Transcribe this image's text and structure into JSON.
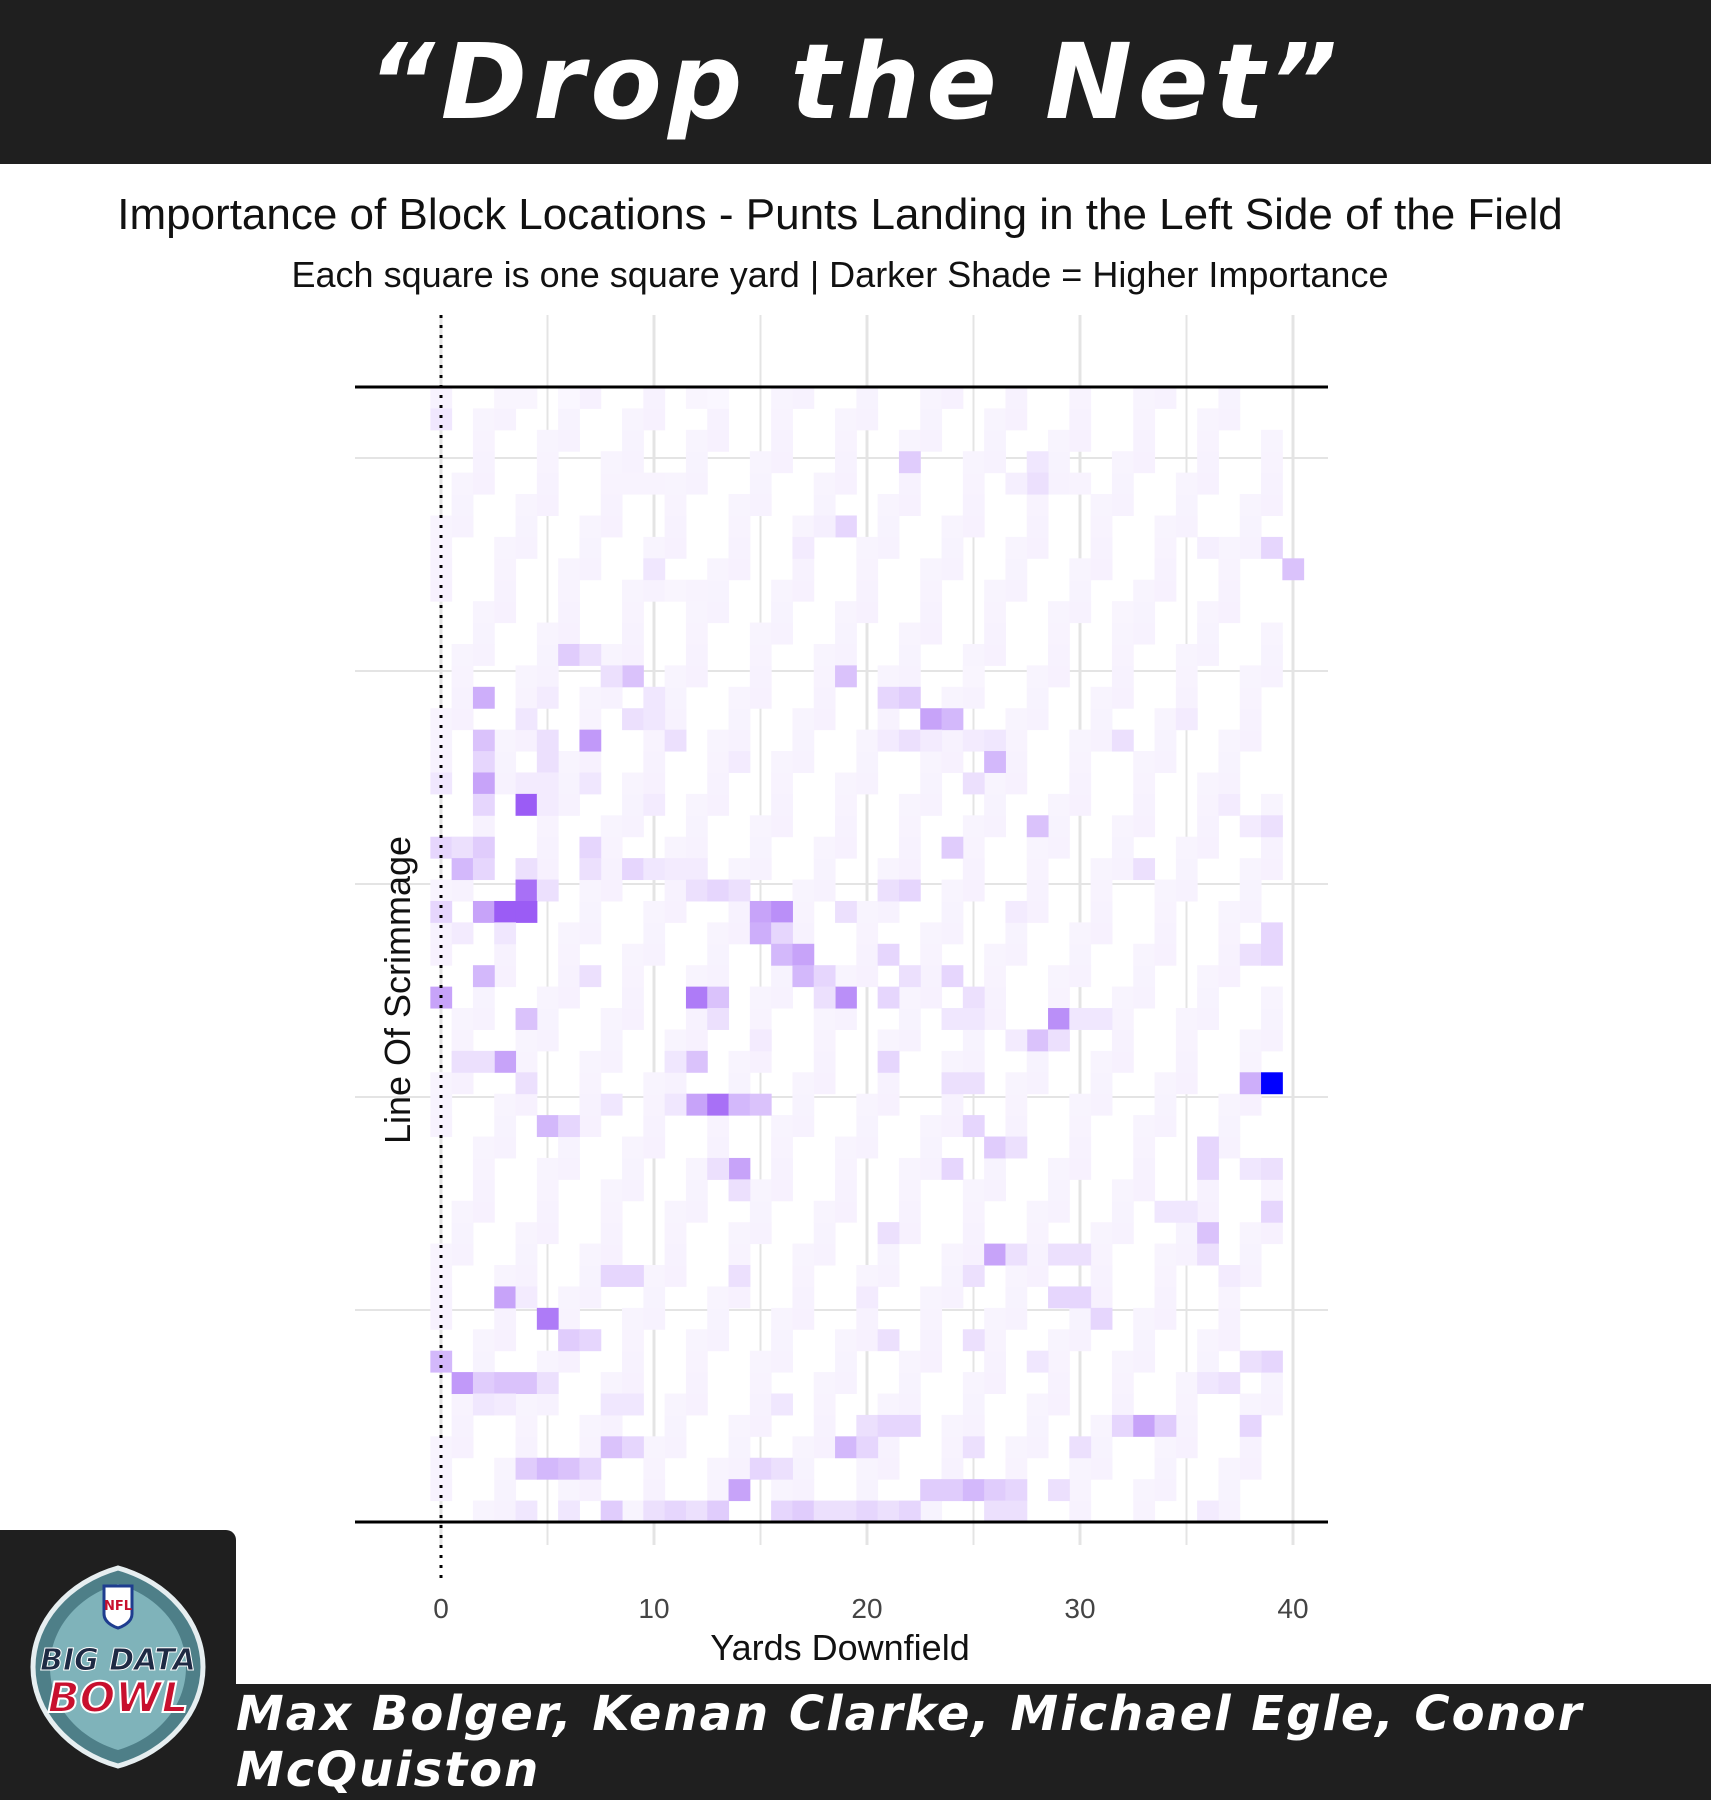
{
  "header": {
    "title": "“Drop the Net”"
  },
  "footer": {
    "authors": "Max Bolger, Kenan Clarke, Michael Egle, Conor McQuiston"
  },
  "logo": {
    "line1": "BIG DATA",
    "line2": "BOWL",
    "badge": "NFL"
  },
  "chart_data": {
    "type": "heatmap",
    "title": "Importance of Block Locations - Punts Landing in the Left Side of the Field",
    "subtitle": "Each square is one square yard | Darker Shade = Higher Importance",
    "xlabel": "Yards Downfield",
    "ylabel": "Line Of Scrimmage",
    "x_ticks": [
      0,
      10,
      20,
      30,
      40
    ],
    "xlim": [
      -4,
      42
    ],
    "x_range_cells": [
      0,
      40
    ],
    "y_range_cells": [
      0,
      53
    ],
    "line_of_scrimmage": 0,
    "grid": true,
    "color_low": "#ffffff",
    "color_mid": "#9b5cf5",
    "color_high": "#0000ff",
    "value_scale": [
      0,
      1
    ],
    "cells": [
      [
        0,
        52,
        0.12
      ],
      [
        3,
        53,
        0.05
      ],
      [
        4,
        53,
        0.05
      ],
      [
        6,
        53,
        0.04
      ],
      [
        12,
        53,
        0.05
      ],
      [
        13,
        53,
        0.04
      ],
      [
        22,
        50,
        0.25
      ],
      [
        28,
        50,
        0.12
      ],
      [
        28,
        49,
        0.15
      ],
      [
        27,
        49,
        0.08
      ],
      [
        9,
        49,
        0.06
      ],
      [
        10,
        49,
        0.06
      ],
      [
        30,
        49,
        0.06
      ],
      [
        19,
        47,
        0.2
      ],
      [
        18,
        47,
        0.08
      ],
      [
        17,
        46,
        0.1
      ],
      [
        39,
        46,
        0.2
      ],
      [
        40,
        45,
        0.3
      ],
      [
        36,
        46,
        0.08
      ],
      [
        10,
        45,
        0.12
      ],
      [
        6,
        44,
        0.06
      ],
      [
        11,
        44,
        0.05
      ],
      [
        12,
        44,
        0.06
      ],
      [
        32,
        43,
        0.05
      ],
      [
        6,
        41,
        0.25
      ],
      [
        7,
        41,
        0.15
      ],
      [
        9,
        40,
        0.3
      ],
      [
        8,
        40,
        0.15
      ],
      [
        19,
        40,
        0.3
      ],
      [
        25,
        40,
        0.05
      ],
      [
        2,
        39,
        0.4
      ],
      [
        5,
        39,
        0.1
      ],
      [
        10,
        39,
        0.12
      ],
      [
        21,
        39,
        0.2
      ],
      [
        22,
        39,
        0.25
      ],
      [
        4,
        38,
        0.12
      ],
      [
        9,
        38,
        0.15
      ],
      [
        10,
        38,
        0.12
      ],
      [
        23,
        38,
        0.45
      ],
      [
        24,
        38,
        0.35
      ],
      [
        35,
        38,
        0.1
      ],
      [
        2,
        37,
        0.3
      ],
      [
        7,
        37,
        0.5
      ],
      [
        5,
        37,
        0.15
      ],
      [
        11,
        37,
        0.15
      ],
      [
        21,
        37,
        0.1
      ],
      [
        22,
        37,
        0.15
      ],
      [
        23,
        37,
        0.1
      ],
      [
        25,
        37,
        0.1
      ],
      [
        26,
        37,
        0.12
      ],
      [
        32,
        37,
        0.15
      ],
      [
        2,
        36,
        0.2
      ],
      [
        5,
        36,
        0.15
      ],
      [
        14,
        36,
        0.1
      ],
      [
        26,
        36,
        0.35
      ],
      [
        0,
        35,
        0.12
      ],
      [
        2,
        35,
        0.45
      ],
      [
        4,
        35,
        0.1
      ],
      [
        5,
        35,
        0.1
      ],
      [
        7,
        35,
        0.12
      ],
      [
        25,
        35,
        0.15
      ],
      [
        4,
        34,
        0.8
      ],
      [
        2,
        34,
        0.2
      ],
      [
        5,
        34,
        0.1
      ],
      [
        10,
        34,
        0.1
      ],
      [
        28,
        33,
        0.3
      ],
      [
        37,
        34,
        0.1
      ],
      [
        38,
        33,
        0.1
      ],
      [
        39,
        33,
        0.15
      ],
      [
        0,
        32,
        0.2
      ],
      [
        1,
        32,
        0.15
      ],
      [
        2,
        32,
        0.25
      ],
      [
        7,
        32,
        0.2
      ],
      [
        9,
        31,
        0.2
      ],
      [
        24,
        32,
        0.25
      ],
      [
        33,
        31,
        0.15
      ],
      [
        1,
        31,
        0.35
      ],
      [
        2,
        31,
        0.2
      ],
      [
        4,
        31,
        0.15
      ],
      [
        7,
        31,
        0.15
      ],
      [
        10,
        31,
        0.12
      ],
      [
        11,
        31,
        0.1
      ],
      [
        12,
        31,
        0.1
      ],
      [
        4,
        30,
        0.7
      ],
      [
        5,
        30,
        0.15
      ],
      [
        12,
        30,
        0.15
      ],
      [
        13,
        30,
        0.2
      ],
      [
        14,
        30,
        0.15
      ],
      [
        21,
        30,
        0.15
      ],
      [
        22,
        30,
        0.2
      ],
      [
        0,
        29,
        0.2
      ],
      [
        2,
        29,
        0.45
      ],
      [
        3,
        29,
        0.8
      ],
      [
        4,
        29,
        0.8
      ],
      [
        15,
        29,
        0.45
      ],
      [
        16,
        29,
        0.55
      ],
      [
        19,
        29,
        0.15
      ],
      [
        27,
        29,
        0.1
      ],
      [
        15,
        28,
        0.4
      ],
      [
        16,
        28,
        0.2
      ],
      [
        39,
        28,
        0.2
      ],
      [
        1,
        28,
        0.1
      ],
      [
        3,
        28,
        0.12
      ],
      [
        16,
        27,
        0.35
      ],
      [
        17,
        27,
        0.45
      ],
      [
        21,
        27,
        0.2
      ],
      [
        38,
        27,
        0.15
      ],
      [
        39,
        27,
        0.2
      ],
      [
        2,
        26,
        0.35
      ],
      [
        7,
        26,
        0.15
      ],
      [
        17,
        26,
        0.35
      ],
      [
        18,
        26,
        0.2
      ],
      [
        22,
        26,
        0.15
      ],
      [
        24,
        26,
        0.2
      ],
      [
        0,
        25,
        0.45
      ],
      [
        12,
        25,
        0.65
      ],
      [
        13,
        25,
        0.3
      ],
      [
        19,
        25,
        0.55
      ],
      [
        18,
        25,
        0.15
      ],
      [
        21,
        25,
        0.2
      ],
      [
        25,
        25,
        0.15
      ],
      [
        4,
        24,
        0.3
      ],
      [
        13,
        24,
        0.15
      ],
      [
        24,
        24,
        0.12
      ],
      [
        25,
        24,
        0.12
      ],
      [
        29,
        24,
        0.55
      ],
      [
        30,
        24,
        0.12
      ],
      [
        31,
        24,
        0.12
      ],
      [
        15,
        23,
        0.1
      ],
      [
        28,
        23,
        0.3
      ],
      [
        29,
        23,
        0.15
      ],
      [
        27,
        23,
        0.1
      ],
      [
        3,
        22,
        0.45
      ],
      [
        1,
        22,
        0.15
      ],
      [
        2,
        22,
        0.15
      ],
      [
        12,
        22,
        0.3
      ],
      [
        21,
        22,
        0.2
      ],
      [
        11,
        22,
        0.12
      ],
      [
        38,
        21,
        0.4
      ],
      [
        39,
        21,
        1.0
      ],
      [
        4,
        21,
        0.15
      ],
      [
        24,
        21,
        0.15
      ],
      [
        25,
        21,
        0.15
      ],
      [
        12,
        20,
        0.45
      ],
      [
        13,
        20,
        0.7
      ],
      [
        14,
        20,
        0.35
      ],
      [
        15,
        20,
        0.3
      ],
      [
        11,
        20,
        0.12
      ],
      [
        8,
        20,
        0.12
      ],
      [
        5,
        19,
        0.35
      ],
      [
        6,
        19,
        0.2
      ],
      [
        25,
        19,
        0.2
      ],
      [
        26,
        18,
        0.25
      ],
      [
        27,
        18,
        0.15
      ],
      [
        36,
        18,
        0.2
      ],
      [
        14,
        17,
        0.45
      ],
      [
        13,
        17,
        0.15
      ],
      [
        24,
        17,
        0.2
      ],
      [
        36,
        17,
        0.2
      ],
      [
        38,
        17,
        0.12
      ],
      [
        39,
        17,
        0.15
      ],
      [
        14,
        16,
        0.15
      ],
      [
        39,
        15,
        0.2
      ],
      [
        34,
        15,
        0.12
      ],
      [
        35,
        15,
        0.12
      ],
      [
        21,
        14,
        0.15
      ],
      [
        36,
        14,
        0.3
      ],
      [
        26,
        13,
        0.45
      ],
      [
        27,
        13,
        0.15
      ],
      [
        29,
        13,
        0.15
      ],
      [
        30,
        13,
        0.15
      ],
      [
        36,
        13,
        0.15
      ],
      [
        8,
        12,
        0.2
      ],
      [
        9,
        12,
        0.2
      ],
      [
        14,
        12,
        0.15
      ],
      [
        25,
        12,
        0.15
      ],
      [
        37,
        12,
        0.1
      ],
      [
        3,
        11,
        0.45
      ],
      [
        4,
        11,
        0.1
      ],
      [
        29,
        11,
        0.2
      ],
      [
        30,
        11,
        0.2
      ],
      [
        20,
        11,
        0.1
      ],
      [
        5,
        10,
        0.65
      ],
      [
        31,
        10,
        0.2
      ],
      [
        6,
        9,
        0.25
      ],
      [
        7,
        9,
        0.2
      ],
      [
        21,
        9,
        0.15
      ],
      [
        25,
        9,
        0.15
      ],
      [
        0,
        8,
        0.35
      ],
      [
        39,
        8,
        0.2
      ],
      [
        28,
        8,
        0.12
      ],
      [
        38,
        8,
        0.15
      ],
      [
        1,
        7,
        0.5
      ],
      [
        2,
        7,
        0.25
      ],
      [
        3,
        7,
        0.3
      ],
      [
        4,
        7,
        0.3
      ],
      [
        5,
        7,
        0.15
      ],
      [
        36,
        7,
        0.12
      ],
      [
        37,
        7,
        0.15
      ],
      [
        2,
        6,
        0.12
      ],
      [
        3,
        6,
        0.1
      ],
      [
        16,
        6,
        0.12
      ],
      [
        8,
        6,
        0.12
      ],
      [
        9,
        6,
        0.12
      ],
      [
        32,
        5,
        0.2
      ],
      [
        33,
        5,
        0.45
      ],
      [
        34,
        5,
        0.25
      ],
      [
        38,
        5,
        0.2
      ],
      [
        20,
        5,
        0.15
      ],
      [
        21,
        5,
        0.2
      ],
      [
        22,
        5,
        0.2
      ],
      [
        8,
        4,
        0.3
      ],
      [
        9,
        4,
        0.2
      ],
      [
        19,
        4,
        0.35
      ],
      [
        20,
        4,
        0.2
      ],
      [
        25,
        4,
        0.15
      ],
      [
        30,
        4,
        0.15
      ],
      [
        4,
        3,
        0.25
      ],
      [
        5,
        3,
        0.35
      ],
      [
        6,
        3,
        0.3
      ],
      [
        7,
        3,
        0.2
      ],
      [
        15,
        3,
        0.2
      ],
      [
        16,
        3,
        0.15
      ],
      [
        14,
        2,
        0.45
      ],
      [
        23,
        2,
        0.25
      ],
      [
        24,
        2,
        0.25
      ],
      [
        25,
        2,
        0.35
      ],
      [
        26,
        2,
        0.25
      ],
      [
        27,
        2,
        0.2
      ],
      [
        29,
        2,
        0.15
      ],
      [
        4,
        1,
        0.12
      ],
      [
        6,
        1,
        0.12
      ],
      [
        8,
        1,
        0.25
      ],
      [
        10,
        1,
        0.15
      ],
      [
        11,
        1,
        0.2
      ],
      [
        12,
        1,
        0.15
      ],
      [
        13,
        1,
        0.25
      ],
      [
        16,
        1,
        0.2
      ],
      [
        17,
        1,
        0.25
      ],
      [
        18,
        1,
        0.15
      ],
      [
        19,
        1,
        0.15
      ],
      [
        20,
        1,
        0.2
      ],
      [
        21,
        1,
        0.15
      ],
      [
        22,
        1,
        0.2
      ],
      [
        26,
        1,
        0.15
      ],
      [
        27,
        1,
        0.15
      ],
      [
        36,
        1,
        0.1
      ]
    ]
  }
}
